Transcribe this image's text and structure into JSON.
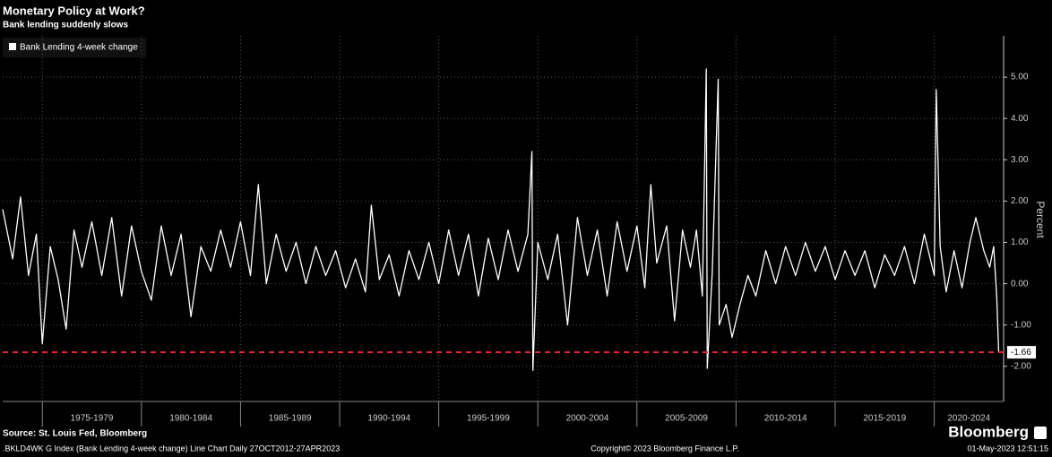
{
  "chart_data": {
    "type": "line",
    "title": "Monetary Policy at Work?",
    "subtitle": "Bank lending suddenly slows",
    "y_axis_label": "Percent",
    "source": "Source: St. Louis Fed, Bloomberg",
    "footer_left": ".BKLD4WK G Index (Bank Lending 4-week change) Line Chart  Daily 27OCT2012-27APR2023",
    "footer_center": "Copyright© 2023 Bloomberg Finance L.P.",
    "footer_right": "01-May-2023 12:51:15",
    "brand": "Bloomberg",
    "x": [
      1973.0,
      1973.5,
      1973.9,
      1974.3,
      1974.7,
      1975.0,
      1975.4,
      1975.8,
      1976.2,
      1976.6,
      1977.0,
      1977.5,
      1978.0,
      1978.5,
      1979.0,
      1979.5,
      1980.0,
      1980.5,
      1981.0,
      1981.5,
      1982.0,
      1982.5,
      1983.0,
      1983.5,
      1984.0,
      1984.5,
      1985.0,
      1985.5,
      1985.9,
      1986.3,
      1986.8,
      1987.3,
      1987.8,
      1988.3,
      1988.8,
      1989.3,
      1989.8,
      1990.3,
      1990.8,
      1991.3,
      1991.6,
      1992.0,
      1992.5,
      1993.0,
      1993.5,
      1994.0,
      1994.5,
      1995.0,
      1995.5,
      1996.0,
      1996.5,
      1997.0,
      1997.5,
      1998.0,
      1998.5,
      1999.0,
      1999.5,
      1999.7,
      1999.75,
      2000.0,
      2000.5,
      2001.0,
      2001.5,
      2002.0,
      2002.5,
      2003.0,
      2003.5,
      2004.0,
      2004.5,
      2005.0,
      2005.4,
      2005.7,
      2006.0,
      2006.5,
      2006.9,
      2007.3,
      2007.7,
      2008.0,
      2008.3,
      2008.5,
      2008.55,
      2008.8,
      2009.1,
      2009.15,
      2009.5,
      2009.8,
      2010.2,
      2010.6,
      2011.0,
      2011.5,
      2012.0,
      2012.5,
      2013.0,
      2013.5,
      2014.0,
      2014.5,
      2015.0,
      2015.5,
      2016.0,
      2016.5,
      2017.0,
      2017.5,
      2018.0,
      2018.5,
      2019.0,
      2019.5,
      2020.0,
      2020.1,
      2020.3,
      2020.6,
      2021.0,
      2021.4,
      2021.8,
      2022.1,
      2022.5,
      2022.8,
      2023.0,
      2023.15,
      2023.25
    ],
    "series": [
      {
        "name": "Bank Lending 4-week change",
        "color": "#ffffff",
        "values": [
          1.8,
          0.6,
          2.1,
          0.2,
          1.2,
          -1.45,
          0.9,
          0.1,
          -1.1,
          1.3,
          0.4,
          1.5,
          0.2,
          1.6,
          -0.3,
          1.4,
          0.3,
          -0.4,
          1.4,
          0.2,
          1.2,
          -0.8,
          0.9,
          0.3,
          1.3,
          0.4,
          1.5,
          0.2,
          2.4,
          0.0,
          1.2,
          0.3,
          1.0,
          0.0,
          0.9,
          0.2,
          0.8,
          -0.1,
          0.6,
          -0.2,
          1.9,
          0.1,
          0.7,
          -0.3,
          0.8,
          0.1,
          1.0,
          0.0,
          1.3,
          0.2,
          1.2,
          -0.3,
          1.1,
          0.1,
          1.3,
          0.3,
          1.2,
          3.2,
          -2.1,
          1.0,
          0.1,
          1.2,
          -1.0,
          1.6,
          0.2,
          1.3,
          -0.3,
          1.5,
          0.3,
          1.4,
          -0.1,
          2.4,
          0.5,
          1.4,
          -0.9,
          1.3,
          0.4,
          1.3,
          -0.3,
          5.2,
          -2.05,
          0.3,
          4.95,
          -1.0,
          -0.5,
          -1.3,
          -0.5,
          0.2,
          -0.3,
          0.8,
          0.0,
          0.9,
          0.2,
          1.0,
          0.3,
          0.9,
          0.1,
          0.8,
          0.2,
          0.8,
          -0.1,
          0.7,
          0.2,
          0.9,
          0.0,
          1.2,
          0.2,
          4.7,
          0.9,
          -0.2,
          0.8,
          -0.1,
          1.0,
          1.6,
          0.8,
          0.4,
          0.9,
          -0.3,
          -1.66
        ]
      }
    ],
    "reference_color": "#e8262f",
    "xlim": [
      1973.0,
      2023.5
    ],
    "xticks": [
      {
        "value": 1975,
        "label": "1975-1979"
      },
      {
        "value": 1980,
        "label": "1980-1984"
      },
      {
        "value": 1985,
        "label": "1985-1989"
      },
      {
        "value": 1990,
        "label": "1990-1994"
      },
      {
        "value": 1995,
        "label": "1995-1999"
      },
      {
        "value": 2000,
        "label": "2000-2004"
      },
      {
        "value": 2005,
        "label": "2005-2009"
      },
      {
        "value": 2010,
        "label": "2010-2014"
      },
      {
        "value": 2015,
        "label": "2015-2019"
      },
      {
        "value": 2020,
        "label": "2020-2024"
      }
    ],
    "ylim": [
      -2.85,
      6.0
    ],
    "yticks": [
      {
        "value": -2,
        "label": "-2.00"
      },
      {
        "value": -1,
        "label": "-1.00"
      },
      {
        "value": 0,
        "label": "0.00"
      },
      {
        "value": 1,
        "label": "1.00"
      },
      {
        "value": 2,
        "label": "2.00"
      },
      {
        "value": 3,
        "label": "3.00"
      },
      {
        "value": 4,
        "label": "4.00"
      },
      {
        "value": 5,
        "label": "5.00"
      }
    ],
    "grid": true
  }
}
